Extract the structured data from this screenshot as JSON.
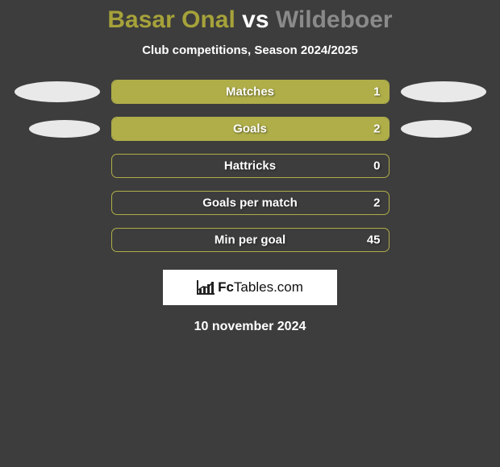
{
  "header": {
    "player1": "Basar Onal",
    "vs": "vs",
    "player2": "Wildeboer",
    "subtitle": "Club competitions, Season 2024/2025"
  },
  "stats": [
    {
      "label": "Matches",
      "value_right": "1",
      "fill_pct": 100,
      "show_left_ellipse": true,
      "ellipse_small": false,
      "show_right_ellipse": true
    },
    {
      "label": "Goals",
      "value_right": "2",
      "fill_pct": 100,
      "show_left_ellipse": true,
      "ellipse_small": true,
      "show_right_ellipse": true
    },
    {
      "label": "Hattricks",
      "value_right": "0",
      "fill_pct": 0,
      "show_left_ellipse": false,
      "ellipse_small": false,
      "show_right_ellipse": false
    },
    {
      "label": "Goals per match",
      "value_right": "2",
      "fill_pct": 0,
      "show_left_ellipse": false,
      "ellipse_small": false,
      "show_right_ellipse": false
    },
    {
      "label": "Min per goal",
      "value_right": "45",
      "fill_pct": 0,
      "show_left_ellipse": false,
      "ellipse_small": false,
      "show_right_ellipse": false
    }
  ],
  "colors": {
    "background": "#3d3d3d",
    "player1": "#a6a23a",
    "player2": "#8a8a8a",
    "bar_fill": "#afae49",
    "bar_border": "#afae49",
    "ellipse": "#e9e9e9",
    "text": "#ffffff"
  },
  "branding": {
    "name_bold": "Fc",
    "name_rest": "Tables",
    "domain": ".com"
  },
  "footer": {
    "date": "10 november 2024"
  }
}
